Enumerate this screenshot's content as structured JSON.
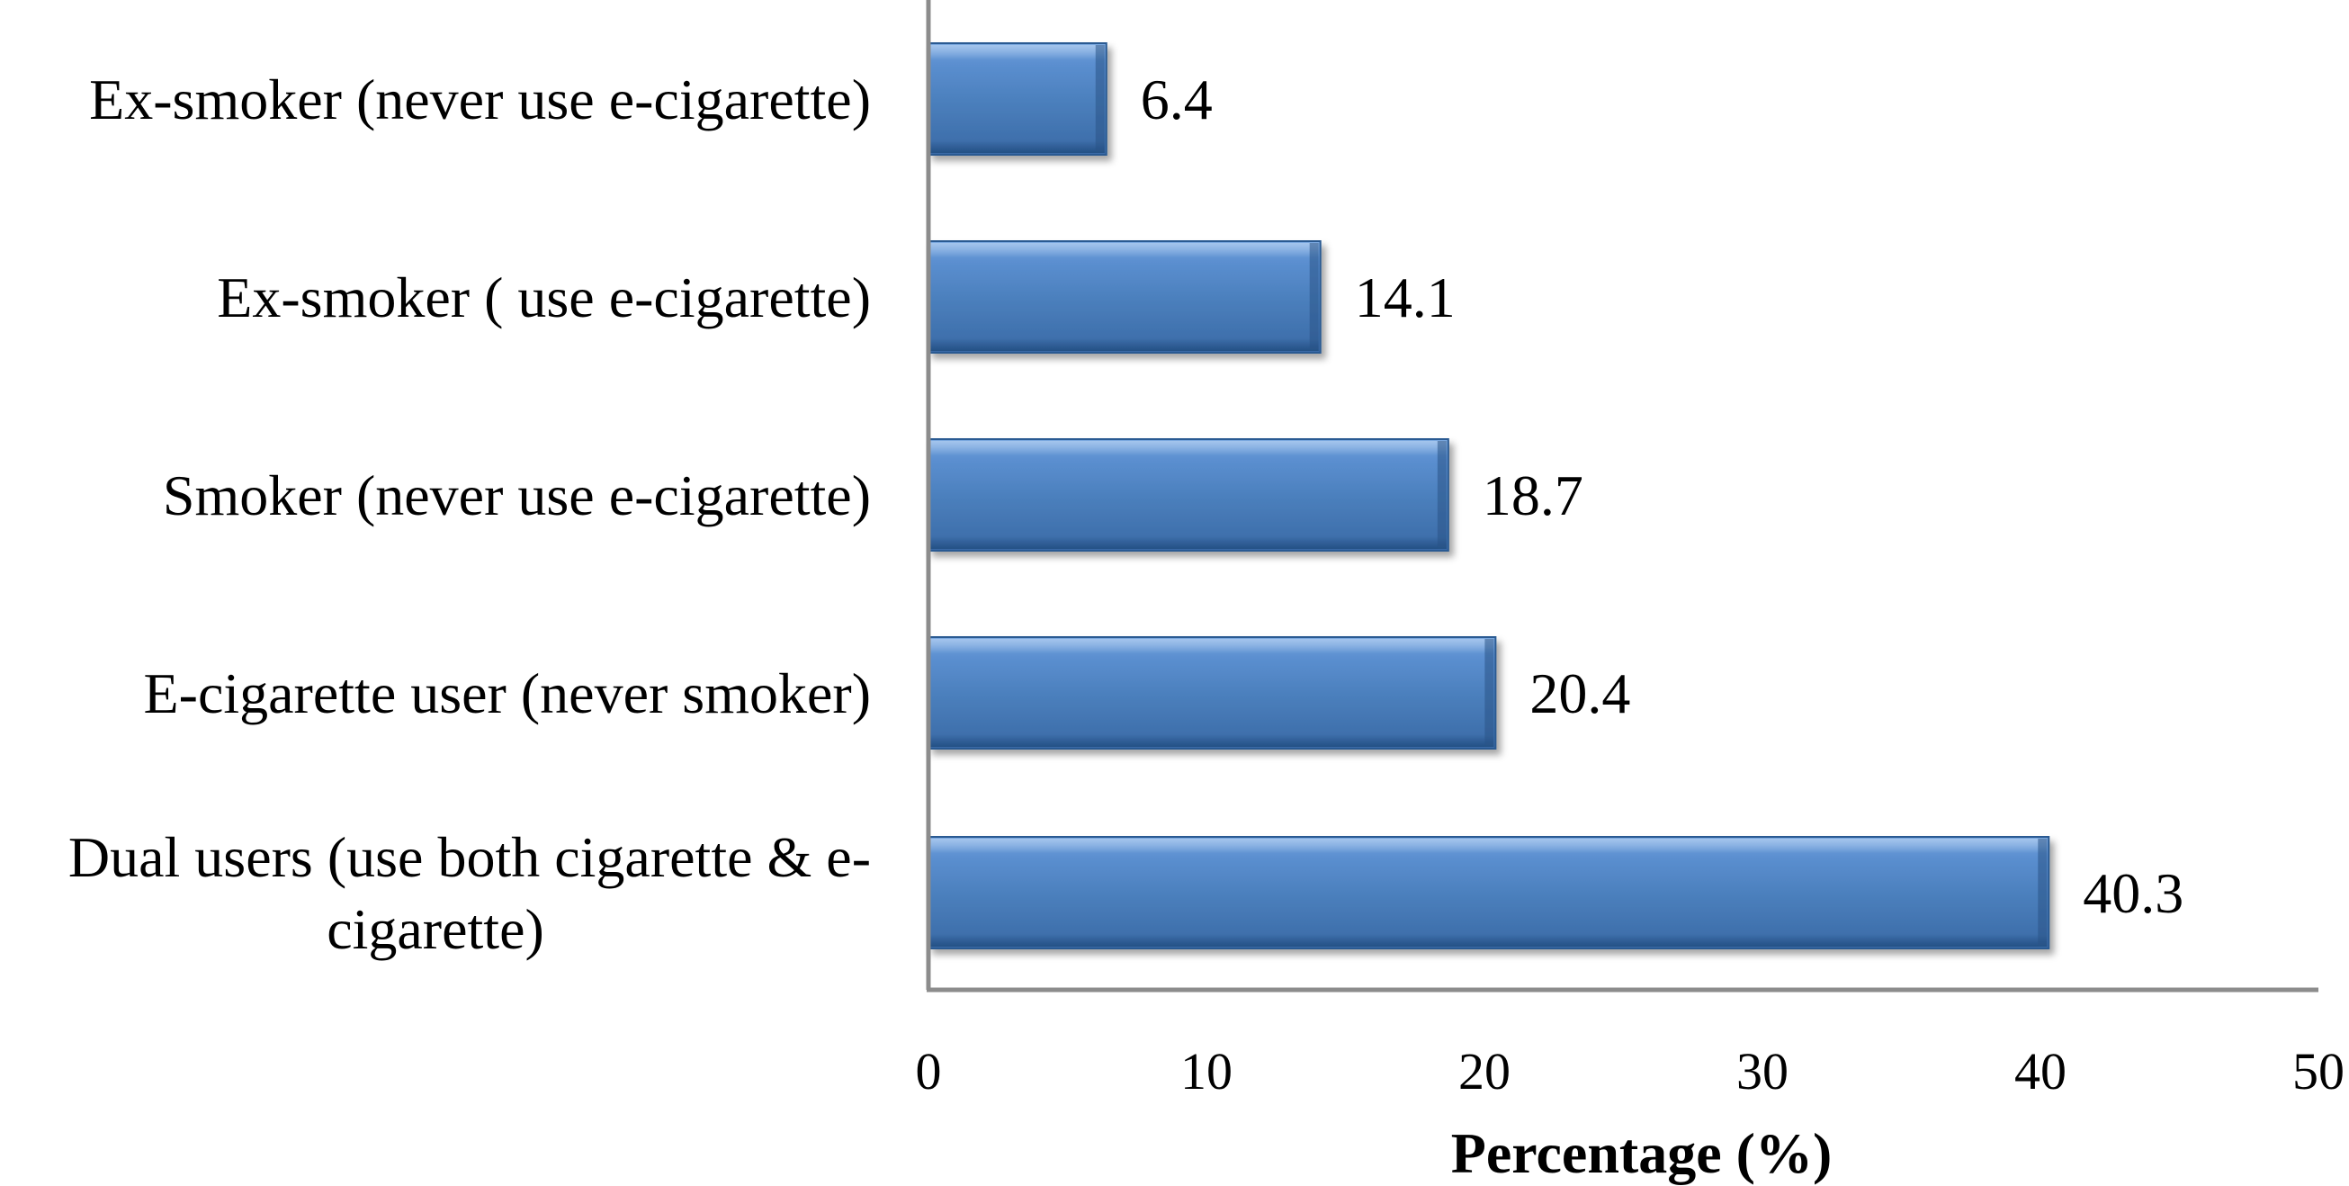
{
  "chart_data": {
    "type": "bar",
    "orientation": "horizontal",
    "categories": [
      "Ex-smoker (never use e-cigarette)",
      "Ex-smoker ( use e-cigarette)",
      "Smoker (never use e-cigarette)",
      "E-cigarette user (never smoker)",
      "Dual users (use both cigarette & e-cigarette)"
    ],
    "category_lines": [
      [
        "Ex-smoker (never use e-cigarette)"
      ],
      [
        "Ex-smoker ( use e-cigarette)"
      ],
      [
        "Smoker (never use e-cigarette)"
      ],
      [
        "E-cigarette user (never smoker)"
      ],
      [
        "Dual users (use both cigarette & e-",
        "cigarette)"
      ]
    ],
    "values": [
      6.4,
      14.1,
      18.7,
      20.4,
      40.3
    ],
    "value_labels": [
      "6.4",
      "14.1",
      "18.7",
      "20.4",
      "40.3"
    ],
    "title": "",
    "xlabel": "Percentage (%)",
    "ylabel": "",
    "xlim": [
      0,
      50
    ],
    "xticks": [
      0,
      10,
      20,
      30,
      40,
      50
    ],
    "grid": false,
    "legend": "none",
    "bar_color": "#4a7ebb",
    "bar_color_light": "#6fa0dc",
    "bar_color_dark": "#2e5f99"
  }
}
